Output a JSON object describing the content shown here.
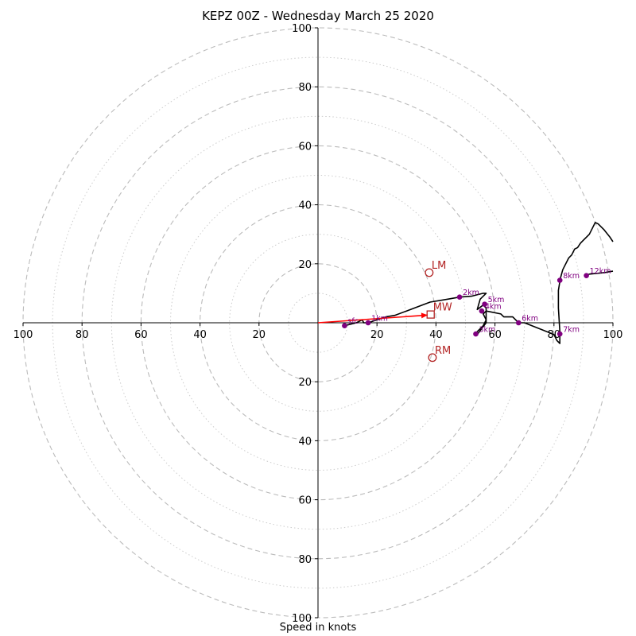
{
  "title": "KEPZ 00Z - Wednesday March 25 2020",
  "footer": "Speed in knots",
  "chart_data": {
    "type": "hodograph",
    "xlabel": "Speed in knots",
    "xlim": [
      -100,
      100
    ],
    "ylim": [
      -100,
      100
    ],
    "tick_labels": [
      "100",
      "80",
      "60",
      "40",
      "20",
      "20",
      "40",
      "60",
      "80",
      "100"
    ],
    "tick_values": [
      -100,
      -80,
      -60,
      -40,
      -20,
      20,
      40,
      60,
      80,
      100
    ],
    "rings_major": [
      20,
      40,
      60,
      80,
      100
    ],
    "rings_minor": [
      10,
      30,
      50,
      70,
      90
    ],
    "grid": true,
    "trace": [
      [
        9,
        -1
      ],
      [
        13,
        0
      ],
      [
        15,
        1
      ],
      [
        15.5,
        0
      ],
      [
        17,
        0
      ],
      [
        20,
        1
      ],
      [
        23,
        2
      ],
      [
        26,
        2.5
      ],
      [
        30,
        4
      ],
      [
        34,
        5.5
      ],
      [
        38,
        7
      ],
      [
        44,
        8
      ],
      [
        48,
        8.7
      ],
      [
        52,
        9
      ],
      [
        56,
        10
      ],
      [
        57,
        10
      ],
      [
        55,
        8
      ],
      [
        54,
        4.5
      ],
      [
        56,
        6
      ],
      [
        57,
        5
      ],
      [
        57,
        0
      ],
      [
        54,
        -4
      ],
      [
        53,
        -4
      ],
      [
        56,
        -1
      ],
      [
        57,
        1
      ],
      [
        56,
        3
      ],
      [
        57,
        4
      ],
      [
        62,
        3
      ],
      [
        63,
        2
      ],
      [
        66,
        2
      ],
      [
        68,
        0
      ],
      [
        70,
        0
      ],
      [
        75,
        -2
      ],
      [
        80,
        -4
      ],
      [
        81,
        -6
      ],
      [
        82,
        -7
      ],
      [
        82,
        -3
      ],
      [
        81.5,
        5
      ],
      [
        81.5,
        11
      ],
      [
        82,
        14
      ],
      [
        82,
        14.4
      ],
      [
        83,
        18
      ],
      [
        85,
        22
      ],
      [
        86,
        23
      ],
      [
        87,
        25
      ],
      [
        88,
        25.5
      ],
      [
        89,
        27
      ],
      [
        90,
        28
      ],
      [
        92,
        30
      ],
      [
        93,
        32
      ],
      [
        94,
        34
      ],
      [
        95,
        33.5
      ],
      [
        97,
        31.5
      ],
      [
        99,
        29
      ],
      [
        100,
        27.5
      ]
    ],
    "trace_tail": [
      [
        91,
        16
      ],
      [
        92,
        16.5
      ],
      [
        95,
        16.8
      ],
      [
        97,
        17
      ],
      [
        100,
        17.5
      ]
    ],
    "height_markers": [
      {
        "label": "sfc",
        "u": 9,
        "v": -1
      },
      {
        "label": "1km",
        "u": 17,
        "v": 0
      },
      {
        "label": "2km",
        "u": 48,
        "v": 8.7
      },
      {
        "label": "3km",
        "u": 53.5,
        "v": -3.8
      },
      {
        "label": "4km",
        "u": 55.5,
        "v": 4
      },
      {
        "label": "5km",
        "u": 56.5,
        "v": 6.3
      },
      {
        "label": "6km",
        "u": 68,
        "v": 0
      },
      {
        "label": "7km",
        "u": 82,
        "v": -3.8
      },
      {
        "label": "8km",
        "u": 82,
        "v": 14.4
      },
      {
        "label": "12km",
        "u": 91,
        "v": 16
      }
    ],
    "storm_motion": [
      {
        "label": "LM",
        "u": 37.7,
        "v": 17,
        "shape": "circle"
      },
      {
        "label": "MW",
        "u": 38.2,
        "v": 2.8,
        "shape": "square"
      },
      {
        "label": "RM",
        "u": 38.8,
        "v": -11.8,
        "shape": "circle"
      }
    ],
    "arrow": {
      "from": [
        0,
        0
      ],
      "to": [
        37.2,
        2.6
      ]
    },
    "colors": {
      "trace": "#000000",
      "markers": "#800080",
      "storm": "#b22222",
      "arrow": "#ff0000",
      "grid": "#bbbbbb"
    }
  }
}
